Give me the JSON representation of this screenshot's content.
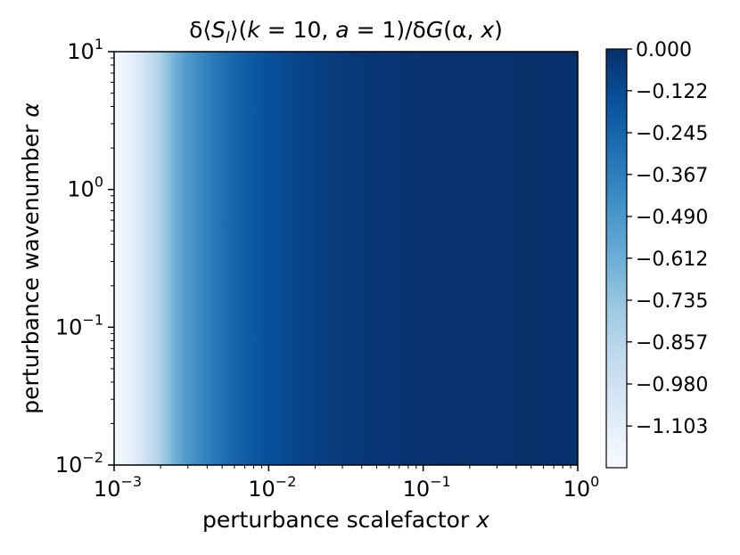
{
  "chart_data": {
    "type": "heatmap",
    "title": "δ⟨S_l⟩(k = 10, a = 1)/δG(α, x)",
    "title_parts": {
      "prefix": "δ⟨",
      "S": "S",
      "sub": "l",
      "middle": "⟩(",
      "k": "k",
      "k_eq": " = 10, ",
      "a": "a",
      "a_eq": " = 1)/δ",
      "G": "G",
      "args": "(α, ",
      "x": "x",
      "close": ")"
    },
    "xlabel": "perturbance scalefactor x",
    "xlabel_parts": {
      "text": "perturbance scalefactor ",
      "var": "x"
    },
    "ylabel": "perturbance wavenumber α",
    "ylabel_parts": {
      "text": "perturbance wavenumber ",
      "var": "α"
    },
    "x_scale": "log",
    "y_scale": "log",
    "xlim": [
      0.001,
      1
    ],
    "ylim": [
      0.01,
      10
    ],
    "x_ticks": [
      {
        "base": "10",
        "exp": "−3",
        "value": 0.001
      },
      {
        "base": "10",
        "exp": "−2",
        "value": 0.01
      },
      {
        "base": "10",
        "exp": "−1",
        "value": 0.1
      },
      {
        "base": "10",
        "exp": "0",
        "value": 1
      }
    ],
    "y_ticks": [
      {
        "base": "10",
        "exp": "−2",
        "value": 0.01
      },
      {
        "base": "10",
        "exp": "−1",
        "value": 0.1
      },
      {
        "base": "10",
        "exp": "0",
        "value": 1
      },
      {
        "base": "10",
        "exp": "1",
        "value": 10
      }
    ],
    "colormap": "Blues_r",
    "color_low": "#f7fbff",
    "color_high": "#08306b",
    "colorbar": {
      "vmin": -1.225,
      "vmax": 0.0,
      "ticks": [
        "0.000",
        "−0.122",
        "−0.245",
        "−0.367",
        "−0.490",
        "−0.612",
        "−0.735",
        "−0.857",
        "−0.980",
        "−1.103"
      ],
      "tick_values": [
        0.0,
        -0.122,
        -0.245,
        -0.367,
        -0.49,
        -0.612,
        -0.735,
        -0.857,
        -0.98,
        -1.103
      ]
    },
    "field_profile": {
      "description_free": true,
      "x": [
        0.001,
        0.0013,
        0.0016,
        0.002,
        0.0025,
        0.003,
        0.004,
        0.005,
        0.006,
        0.008,
        0.01,
        0.015,
        0.02,
        0.03,
        0.05,
        0.1,
        0.2,
        0.5,
        1
      ],
      "value": [
        -1.22,
        -1.12,
        -0.98,
        -0.82,
        -0.62,
        -0.5,
        -0.38,
        -0.3,
        -0.25,
        -0.19,
        -0.15,
        -0.1,
        -0.08,
        -0.05,
        -0.03,
        -0.015,
        -0.008,
        -0.003,
        -0.001
      ]
    }
  }
}
